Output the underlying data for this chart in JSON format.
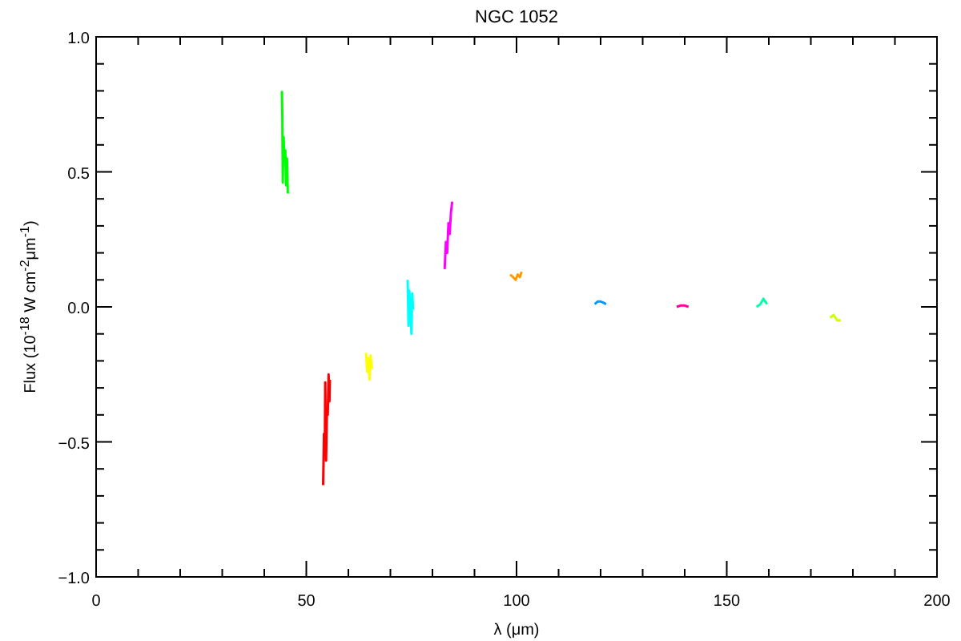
{
  "chart_data": {
    "type": "line",
    "title": "NGC 1052",
    "xlabel": "λ (μm)",
    "ylabel": "Flux (10$^{-18}$ W cm$^{-2}$μm$^{-1}$)",
    "xlim": [
      0,
      200
    ],
    "ylim": [
      -1,
      1
    ],
    "xticks": [
      {
        "value": 0,
        "label": "0"
      },
      {
        "value": 10,
        "label": null
      },
      {
        "value": 20,
        "label": null
      },
      {
        "value": 30,
        "label": null
      },
      {
        "value": 40,
        "label": null
      },
      {
        "value": 50,
        "label": "50"
      },
      {
        "value": 60,
        "label": null
      },
      {
        "value": 70,
        "label": null
      },
      {
        "value": 80,
        "label": null
      },
      {
        "value": 90,
        "label": null
      },
      {
        "value": 100,
        "label": "100"
      },
      {
        "value": 110,
        "label": null
      },
      {
        "value": 120,
        "label": null
      },
      {
        "value": 130,
        "label": null
      },
      {
        "value": 140,
        "label": null
      },
      {
        "value": 150,
        "label": "150"
      },
      {
        "value": 160,
        "label": null
      },
      {
        "value": 170,
        "label": null
      },
      {
        "value": 180,
        "label": null
      },
      {
        "value": 190,
        "label": null
      },
      {
        "value": 200,
        "label": "200"
      }
    ],
    "yticks": [
      {
        "value": -1,
        "label": "−1.0"
      },
      {
        "value": -0.9,
        "label": null
      },
      {
        "value": -0.8,
        "label": null
      },
      {
        "value": -0.7,
        "label": null
      },
      {
        "value": -0.6,
        "label": null
      },
      {
        "value": -0.5,
        "label": "−0.5"
      },
      {
        "value": -0.4,
        "label": null
      },
      {
        "value": -0.3,
        "label": null
      },
      {
        "value": -0.2,
        "label": null
      },
      {
        "value": -0.1,
        "label": null
      },
      {
        "value": 0,
        "label": "0.0"
      },
      {
        "value": 0.1,
        "label": null
      },
      {
        "value": 0.2,
        "label": null
      },
      {
        "value": 0.3,
        "label": null
      },
      {
        "value": 0.4,
        "label": null
      },
      {
        "value": 0.5,
        "label": "0.5"
      },
      {
        "value": 0.6,
        "label": null
      },
      {
        "value": 0.7,
        "label": null
      },
      {
        "value": 0.8,
        "label": null
      },
      {
        "value": 0.9,
        "label": null
      },
      {
        "value": 1,
        "label": "1.0"
      }
    ],
    "grid": false,
    "series": [
      {
        "color": "#00ff00",
        "x": [
          44.2,
          44.3,
          44.4,
          44.6,
          44.8,
          45.0,
          45.2,
          45.4,
          45.6
        ],
        "values": [
          0.8,
          0.7,
          0.46,
          0.63,
          0.55,
          0.58,
          0.45,
          0.55,
          0.42
        ]
      },
      {
        "color": "#ff0000",
        "x": [
          54.0,
          54.2,
          54.4,
          54.5,
          54.7,
          54.9,
          55.1,
          55.3,
          55.5,
          55.6
        ],
        "values": [
          -0.66,
          -0.47,
          -0.52,
          -0.28,
          -0.57,
          -0.38,
          -0.4,
          -0.25,
          -0.35,
          -0.27
        ]
      },
      {
        "color": "#ffff00",
        "x": [
          64.2,
          64.5,
          64.8,
          65.0,
          65.3,
          65.6
        ],
        "values": [
          -0.17,
          -0.24,
          -0.19,
          -0.27,
          -0.18,
          -0.23
        ]
      },
      {
        "color": "#00ffff",
        "x": [
          74.1,
          74.3,
          74.5,
          74.8,
          75.0,
          75.2,
          75.4
        ],
        "values": [
          0.1,
          -0.07,
          0.06,
          -0.02,
          -0.1,
          0.05,
          -0.01
        ]
      },
      {
        "color": "#ff00ff",
        "x": [
          82.9,
          83.2,
          83.5,
          83.8,
          84.1,
          84.4,
          84.7
        ],
        "values": [
          0.14,
          0.24,
          0.2,
          0.31,
          0.27,
          0.35,
          0.39
        ]
      },
      {
        "color": "#ff9900",
        "x": [
          98.5,
          99.2,
          99.8,
          100.3,
          100.8,
          101.2
        ],
        "values": [
          0.12,
          0.11,
          0.1,
          0.12,
          0.11,
          0.13
        ]
      },
      {
        "color": "#0099ff",
        "x": [
          118.6,
          119.3,
          120.0,
          120.7,
          121.3
        ],
        "values": [
          0.01,
          0.02,
          0.02,
          0.015,
          0.01
        ]
      },
      {
        "color": "#ff0099",
        "x": [
          138.1,
          139,
          140,
          140.9
        ],
        "values": [
          0,
          0.005,
          0.005,
          0
        ]
      },
      {
        "color": "#00ffaa",
        "x": [
          157.1,
          158,
          158.7,
          159.6
        ],
        "values": [
          0,
          0.01,
          0.03,
          0.01
        ]
      },
      {
        "color": "#ccff00",
        "x": [
          174.6,
          175.4,
          176.3,
          177.1
        ],
        "values": [
          -0.04,
          -0.03,
          -0.05,
          -0.05
        ]
      }
    ]
  }
}
